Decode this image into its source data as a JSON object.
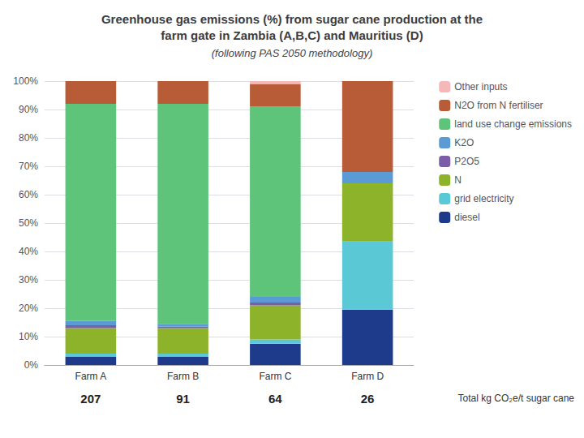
{
  "chart_data": {
    "type": "bar",
    "title": "Greenhouse gas emissions (%) from sugar cane production at the\nfarm gate in Zambia (A,B,C) and Mauritius (D)",
    "subtitle": "(following PAS 2050 methodology)",
    "categories": [
      "Farm A",
      "Farm B",
      "Farm C",
      "Farm D"
    ],
    "series": [
      {
        "name": "diesel",
        "color": "#1e3a8a",
        "values": [
          3.0,
          3.0,
          7.5,
          19.5
        ]
      },
      {
        "name": "grid electricity",
        "color": "#5bc8d5",
        "values": [
          1.0,
          1.0,
          1.5,
          24.0
        ]
      },
      {
        "name": "N",
        "color": "#8db32a",
        "values": [
          9.0,
          9.0,
          12.0,
          20.5
        ]
      },
      {
        "name": "P2O5",
        "color": "#7b5ea7",
        "values": [
          1.0,
          0.5,
          1.0,
          0.0
        ]
      },
      {
        "name": "K2O",
        "color": "#5b9bd5",
        "values": [
          1.5,
          1.0,
          2.0,
          4.0
        ]
      },
      {
        "name": "land use change emissions",
        "color": "#5ec47a",
        "values": [
          76.5,
          77.5,
          67.0,
          0.0
        ]
      },
      {
        "name": "N2O from N fertiliser",
        "color": "#b85c38",
        "values": [
          8.0,
          8.0,
          8.0,
          32.0
        ]
      },
      {
        "name": "Other inputs",
        "color": "#f4b8b8",
        "values": [
          0.0,
          0.0,
          1.0,
          0.0
        ]
      }
    ],
    "totals": [
      207,
      91,
      64,
      26
    ],
    "totals_label": "Total kg CO₂e/t sugar cane",
    "ylim": [
      0,
      100
    ],
    "yticks": [
      {
        "value": 0,
        "label": "0%"
      },
      {
        "value": 10,
        "label": "10%"
      },
      {
        "value": 20,
        "label": "20%"
      },
      {
        "value": 30,
        "label": "30%"
      },
      {
        "value": 40,
        "label": "40%"
      },
      {
        "value": 50,
        "label": "50%"
      },
      {
        "value": 60,
        "label": "60%"
      },
      {
        "value": 70,
        "label": "70%"
      },
      {
        "value": 80,
        "label": "80%"
      },
      {
        "value": 90,
        "label": "90%"
      },
      {
        "value": 100,
        "label": "100%"
      }
    ],
    "stacked": true,
    "grid": true,
    "legend": "right"
  }
}
